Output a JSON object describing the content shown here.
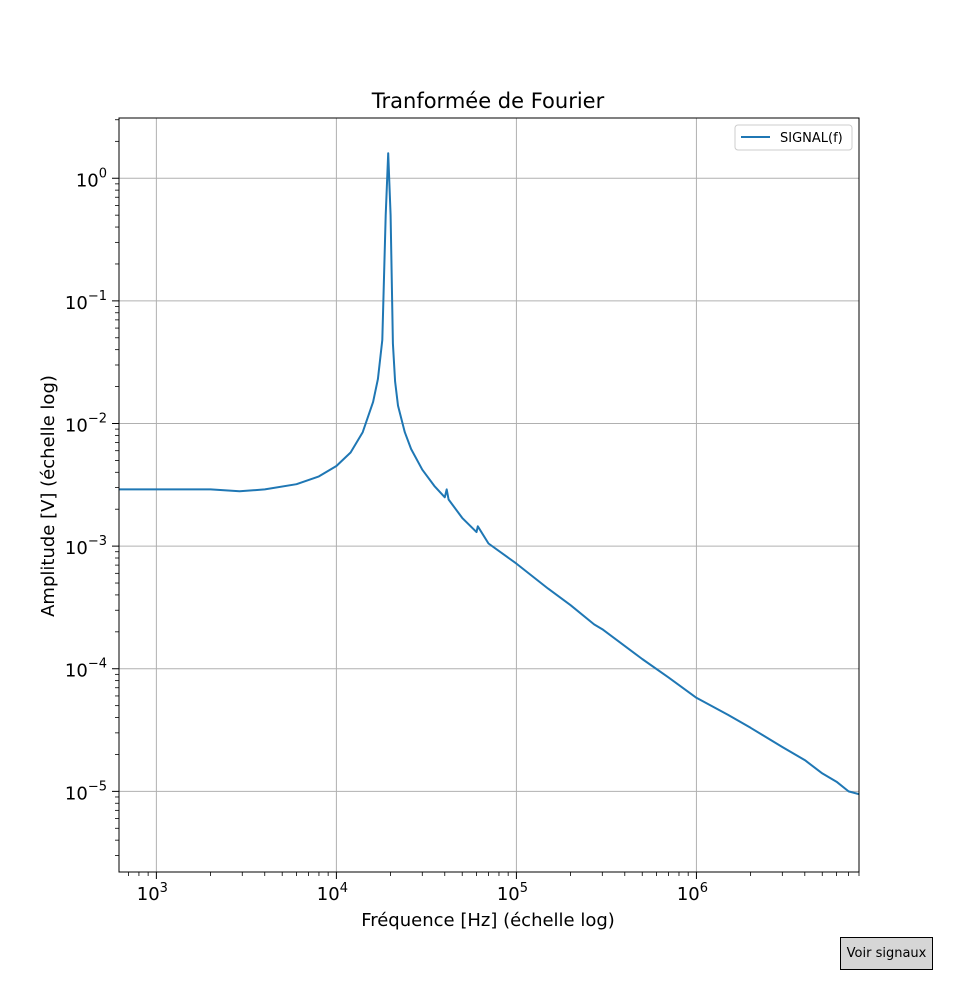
{
  "chart_data": {
    "type": "line",
    "title": "Tranformée de Fourier",
    "xlabel": "Fréquence [Hz] (échelle log)",
    "ylabel": "Amplitude [V] (échelle log)",
    "xscale": "log",
    "yscale": "log",
    "xlim": [
      620,
      8000000
    ],
    "ylim": [
      2.2e-06,
      3.1
    ],
    "grid": true,
    "legend_position": "top-right",
    "xticks": [
      {
        "value": 1000,
        "base": "10",
        "exp": "3"
      },
      {
        "value": 10000,
        "base": "10",
        "exp": "4"
      },
      {
        "value": 100000,
        "base": "10",
        "exp": "5"
      },
      {
        "value": 1000000,
        "base": "10",
        "exp": "6"
      }
    ],
    "yticks": [
      {
        "value": 1,
        "base": "10",
        "exp": "0"
      },
      {
        "value": 0.1,
        "base": "10",
        "exp": "−1"
      },
      {
        "value": 0.01,
        "base": "10",
        "exp": "−2"
      },
      {
        "value": 0.001,
        "base": "10",
        "exp": "−3"
      },
      {
        "value": 0.0001,
        "base": "10",
        "exp": "−4"
      },
      {
        "value": 1e-05,
        "base": "10",
        "exp": "−5"
      }
    ],
    "series": [
      {
        "name": "SIGNAL(f)",
        "color": "#1f77b4",
        "x": [
          620,
          1000,
          2000,
          2900,
          4000,
          6000,
          8000,
          10000,
          12000,
          14000,
          16000,
          17000,
          18000,
          18800,
          19400,
          20000,
          20600,
          21200,
          22000,
          24000,
          26000,
          30000,
          35000,
          40000,
          41000,
          42000,
          50000,
          60000,
          61000,
          70000,
          100000,
          150000,
          200000,
          270000,
          300000,
          500000,
          700000,
          1000000,
          1500000,
          2000000,
          3000000,
          4000000,
          5000000,
          6000000,
          7000000,
          8000000
        ],
        "y": [
          0.0029,
          0.0029,
          0.0029,
          0.0028,
          0.0029,
          0.0032,
          0.0037,
          0.0045,
          0.0058,
          0.0085,
          0.015,
          0.023,
          0.048,
          0.5,
          1.6,
          0.5,
          0.045,
          0.022,
          0.014,
          0.0085,
          0.0062,
          0.0042,
          0.0031,
          0.0025,
          0.0029,
          0.0024,
          0.0017,
          0.0013,
          0.00145,
          0.00105,
          0.00072,
          0.00045,
          0.00033,
          0.00023,
          0.00021,
          0.00012,
          8.5e-05,
          5.8e-05,
          4.2e-05,
          3.3e-05,
          2.3e-05,
          1.8e-05,
          1.4e-05,
          1.2e-05,
          1e-05,
          9.5e-06
        ]
      }
    ]
  },
  "ui": {
    "button_label": "Voir signaux"
  }
}
